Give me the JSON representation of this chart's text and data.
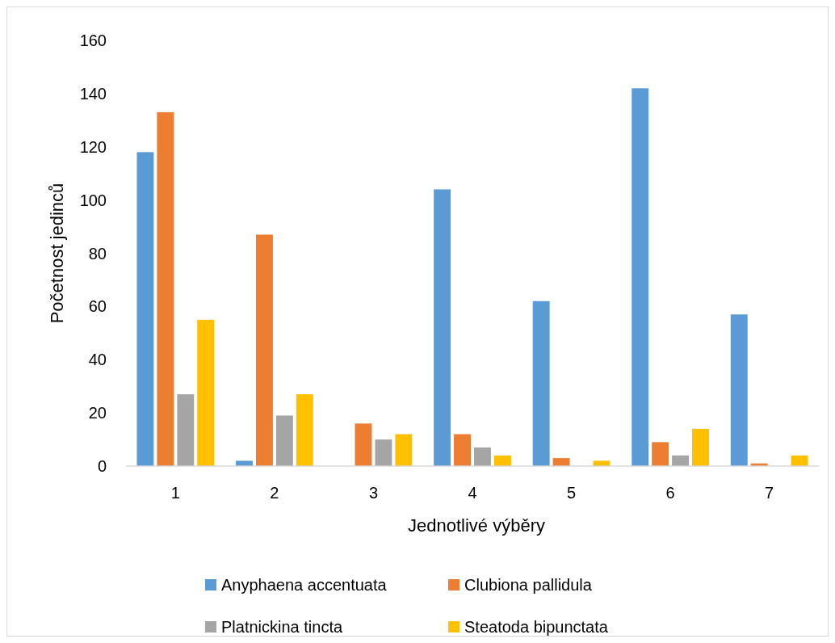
{
  "chart_data": {
    "type": "bar",
    "xlabel": "Jednotlivé výběry",
    "ylabel": "Početnost jedinců",
    "categories": [
      "1",
      "2",
      "3",
      "4",
      "5",
      "6",
      "7"
    ],
    "series": [
      {
        "name": "Anyphaena accentuata",
        "color": "#5b9bd5",
        "values": [
          118,
          2,
          0,
          104,
          62,
          142,
          57
        ]
      },
      {
        "name": "Clubiona pallidula",
        "color": "#ed7d31",
        "values": [
          133,
          87,
          16,
          12,
          3,
          9,
          1
        ]
      },
      {
        "name": "Platnickina tincta",
        "color": "#a5a5a5",
        "values": [
          27,
          19,
          10,
          7,
          0,
          4,
          0
        ]
      },
      {
        "name": "Steatoda bipunctata",
        "color": "#ffc000",
        "values": [
          55,
          27,
          12,
          4,
          2,
          14,
          4
        ]
      }
    ],
    "ylim": [
      0,
      160
    ],
    "yticks": [
      0,
      20,
      40,
      60,
      80,
      100,
      120,
      140,
      160
    ],
    "grid": false,
    "legend": "bottom"
  }
}
